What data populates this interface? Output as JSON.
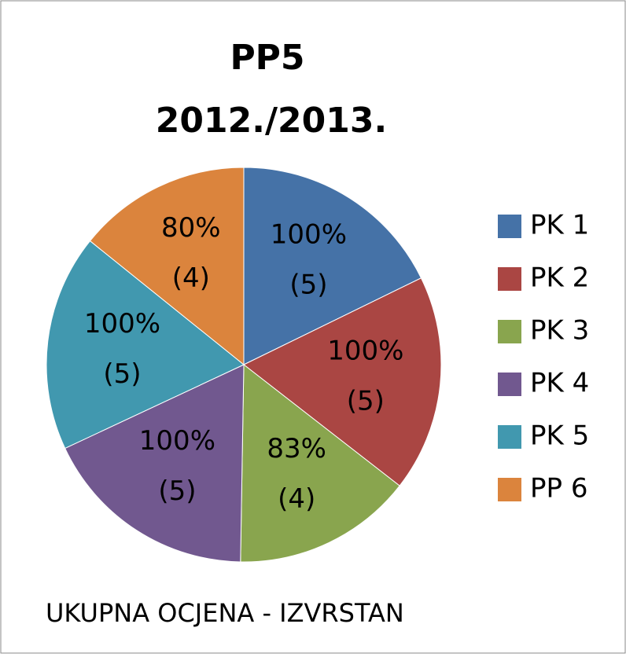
{
  "chart_data": {
    "type": "pie",
    "title": [
      "PP5",
      "2012./2013."
    ],
    "categories": [
      "PK 1",
      "PK 2",
      "PK 3",
      "PK 4",
      "PK 5",
      "PP 6"
    ],
    "values": [
      100,
      100,
      83,
      100,
      100,
      80
    ],
    "value_labels": [
      "100%",
      "100%",
      "83%",
      "100%",
      "100%",
      "80%"
    ],
    "counts": [
      5,
      5,
      4,
      5,
      5,
      4
    ],
    "count_labels": [
      "(5)",
      "(5)",
      "(4)",
      "(5)",
      "(5)",
      "(4)"
    ],
    "colors": [
      "#4572A7",
      "#AA4643",
      "#89A54E",
      "#71588F",
      "#4198AF",
      "#DB843D"
    ],
    "legend": "right",
    "annotation": "UKUPNA OCJENA  - IZVRSTAN"
  }
}
